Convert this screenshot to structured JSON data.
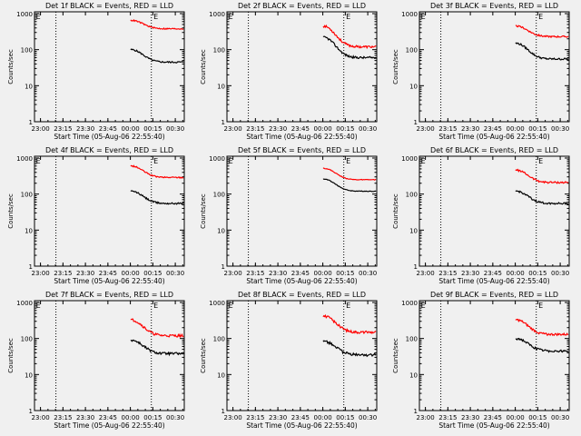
{
  "chart_data": [
    {
      "type": "line",
      "title": "Det 1f BLACK = Events, RED = LLD",
      "xlabel": "Start Time (05-Aug-06 22:55:40)",
      "ylabel": "Counts/sec",
      "x_ticks": [
        "23:00",
        "23:15",
        "23:30",
        "23:45",
        "00:00",
        "00:15",
        "00:30"
      ],
      "y_ticks": [
        "1",
        "10",
        "100",
        "1000"
      ],
      "ylim": [
        1,
        1000
      ],
      "y_scale": "log",
      "series_start": "00:00",
      "series": [
        {
          "color": "#000000",
          "start": 100,
          "end": 45,
          "noise": 0.05
        },
        {
          "color": "#ff0000",
          "start": 650,
          "end": 380,
          "noise": 0.04
        }
      ]
    },
    {
      "type": "line",
      "title": "Det 2f BLACK = Events, RED = LLD",
      "xlabel": "Start Time (05-Aug-06 22:55:40)",
      "ylabel": "Counts/sec",
      "x_ticks": [
        "23:00",
        "23:15",
        "23:30",
        "23:45",
        "00:00",
        "00:15",
        "00:30"
      ],
      "y_ticks": [
        "1",
        "10",
        "100",
        "1000"
      ],
      "ylim": [
        1,
        1000
      ],
      "y_scale": "log",
      "series_start": "00:00",
      "series": [
        {
          "color": "#000000",
          "start": 220,
          "end": 60,
          "noise": 0.07
        },
        {
          "color": "#ff0000",
          "start": 450,
          "end": 120,
          "noise": 0.07
        }
      ]
    },
    {
      "type": "line",
      "title": "Det 3f BLACK = Events, RED = LLD",
      "xlabel": "Start Time (05-Aug-06 22:55:40)",
      "ylabel": "Counts/sec",
      "x_ticks": [
        "23:00",
        "23:15",
        "23:30",
        "23:45",
        "00:00",
        "00:15",
        "00:30"
      ],
      "y_ticks": [
        "1",
        "10",
        "100",
        "1000"
      ],
      "ylim": [
        1,
        1000
      ],
      "y_scale": "log",
      "series_start": "00:00",
      "series": [
        {
          "color": "#000000",
          "start": 150,
          "end": 55,
          "noise": 0.06
        },
        {
          "color": "#ff0000",
          "start": 450,
          "end": 230,
          "noise": 0.05
        }
      ]
    },
    {
      "type": "line",
      "title": "Det 4f BLACK = Events, RED = LLD",
      "xlabel": "Start Time (05-Aug-06 22:55:40)",
      "ylabel": "Counts/sec",
      "x_ticks": [
        "23:00",
        "23:15",
        "23:30",
        "23:45",
        "00:00",
        "00:15",
        "00:30"
      ],
      "y_ticks": [
        "1",
        "10",
        "100",
        "1000"
      ],
      "ylim": [
        1,
        1000
      ],
      "y_scale": "log",
      "series_start": "00:00",
      "series": [
        {
          "color": "#000000",
          "start": 120,
          "end": 55,
          "noise": 0.05
        },
        {
          "color": "#ff0000",
          "start": 600,
          "end": 290,
          "noise": 0.04
        }
      ]
    },
    {
      "type": "line",
      "title": "Det 5f BLACK = Events, RED = LLD",
      "xlabel": "Start Time (05-Aug-06 22:55:40)",
      "ylabel": "Counts/sec",
      "x_ticks": [
        "23:00",
        "23:15",
        "23:30",
        "23:45",
        "00:00",
        "00:15",
        "00:30"
      ],
      "y_ticks": [
        "1",
        "10",
        "100",
        "1000"
      ],
      "ylim": [
        1,
        1000
      ],
      "y_scale": "log",
      "series_start": "00:00",
      "series": [
        {
          "color": "#000000",
          "start": 260,
          "end": 120,
          "noise": 0.02
        },
        {
          "color": "#ff0000",
          "start": 520,
          "end": 250,
          "noise": 0.02
        }
      ]
    },
    {
      "type": "line",
      "title": "Det 6f BLACK = Events, RED = LLD",
      "xlabel": "Start Time (05-Aug-06 22:55:40)",
      "ylabel": "Counts/sec",
      "x_ticks": [
        "23:00",
        "23:15",
        "23:30",
        "23:45",
        "00:00",
        "00:15",
        "00:30"
      ],
      "y_ticks": [
        "1",
        "10",
        "100",
        "1000"
      ],
      "ylim": [
        1,
        1000
      ],
      "y_scale": "log",
      "series_start": "00:00",
      "series": [
        {
          "color": "#000000",
          "start": 120,
          "end": 55,
          "noise": 0.06
        },
        {
          "color": "#ff0000",
          "start": 460,
          "end": 210,
          "noise": 0.06
        }
      ]
    },
    {
      "type": "line",
      "title": "Det 7f BLACK = Events, RED = LLD",
      "xlabel": "Start Time (05-Aug-06 22:55:40)",
      "ylabel": "Counts/sec",
      "x_ticks": [
        "23:00",
        "23:15",
        "23:30",
        "23:45",
        "00:00",
        "00:15",
        "00:30"
      ],
      "y_ticks": [
        "1",
        "10",
        "100",
        "1000"
      ],
      "ylim": [
        1,
        1000
      ],
      "y_scale": "log",
      "series_start": "00:00",
      "series": [
        {
          "color": "#000000",
          "start": 90,
          "end": 38,
          "noise": 0.08
        },
        {
          "color": "#ff0000",
          "start": 330,
          "end": 120,
          "noise": 0.08
        }
      ]
    },
    {
      "type": "line",
      "title": "Det 8f BLACK = Events, RED = LLD",
      "xlabel": "Start Time (05-Aug-06 22:55:40)",
      "ylabel": "Counts/sec",
      "x_ticks": [
        "23:00",
        "23:15",
        "23:30",
        "23:45",
        "00:00",
        "00:15",
        "00:30"
      ],
      "y_ticks": [
        "1",
        "10",
        "100",
        "1000"
      ],
      "ylim": [
        1,
        1000
      ],
      "y_scale": "log",
      "series_start": "00:00",
      "series": [
        {
          "color": "#000000",
          "start": 85,
          "end": 35,
          "noise": 0.09
        },
        {
          "color": "#ff0000",
          "start": 420,
          "end": 150,
          "noise": 0.08
        }
      ]
    },
    {
      "type": "line",
      "title": "Det 9f BLACK = Events, RED = LLD",
      "xlabel": "Start Time (05-Aug-06 22:55:40)",
      "ylabel": "Counts/sec",
      "x_ticks": [
        "23:00",
        "23:15",
        "23:30",
        "23:45",
        "00:00",
        "00:15",
        "00:30"
      ],
      "y_ticks": [
        "1",
        "10",
        "100",
        "1000"
      ],
      "ylim": [
        1,
        1000
      ],
      "y_scale": "log",
      "series_start": "00:00",
      "series": [
        {
          "color": "#000000",
          "start": 100,
          "end": 45,
          "noise": 0.07
        },
        {
          "color": "#ff0000",
          "start": 330,
          "end": 130,
          "noise": 0.07
        }
      ]
    }
  ]
}
